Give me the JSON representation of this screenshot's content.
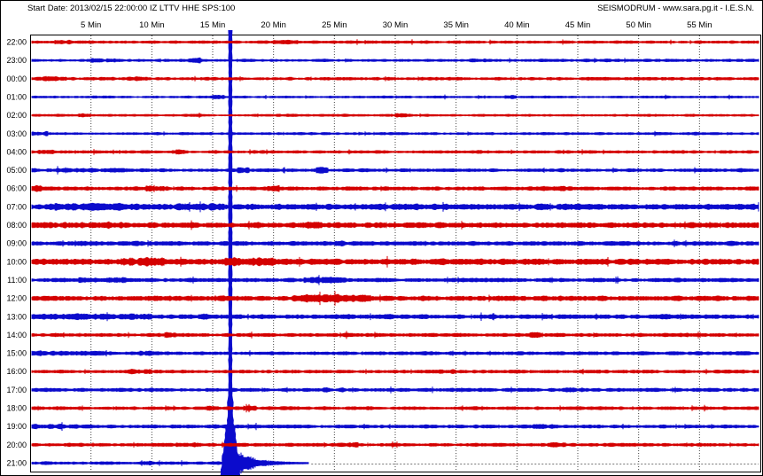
{
  "window": {
    "background": "#ffffff",
    "border_color": "#000000"
  },
  "header": {
    "start_date_label": "Start Date: 2013/02/15 22:00:00 IZ LTTV HHE SPS:100",
    "brand_label": "SEISMODRUM - www.sara.pg.it - I.E.S.N."
  },
  "chart_data": {
    "type": "line",
    "subtype": "helicorder_seismogram_drum",
    "title": "24-hour seismic drum recording, one hour per trace, alternating red/blue",
    "x_axis": {
      "unit": "minutes",
      "min": 0,
      "max": 60,
      "tick_interval": 5,
      "tick_labels": [
        "5 Min",
        "10 Min",
        "15 Min",
        "20 Min",
        "25 Min",
        "30 Min",
        "35 Min",
        "40 Min",
        "45 Min",
        "50 Min",
        "55 Min"
      ]
    },
    "grid": {
      "vertical_dotted_every_min": 5,
      "horizontal": false
    },
    "colors": {
      "red": "#d40000",
      "blue": "#0b0bcc",
      "grid": "#444444",
      "axis": "#000000",
      "pending": "#777777",
      "text": "#000000"
    },
    "rows": [
      {
        "time": "22:00",
        "color": "red",
        "amp": 1.4,
        "bursts": [
          [
            2,
            3.5,
            1.6
          ],
          [
            20,
            22,
            1.4
          ],
          [
            27,
            29,
            1.3
          ]
        ]
      },
      {
        "time": "23:00",
        "color": "blue",
        "amp": 1.4,
        "bursts": [
          [
            5,
            7,
            1.5
          ],
          [
            13,
            14,
            1.6
          ],
          [
            36,
            38,
            1.3
          ]
        ]
      },
      {
        "time": "00:00",
        "color": "red",
        "amp": 1.5,
        "bursts": [
          [
            1,
            3,
            1.5
          ],
          [
            8,
            10,
            1.3
          ]
        ]
      },
      {
        "time": "01:00",
        "color": "blue",
        "amp": 1.2,
        "bursts": [
          [
            15,
            16,
            1.5
          ],
          [
            39,
            40,
            1.9
          ]
        ]
      },
      {
        "time": "02:00",
        "color": "red",
        "amp": 1.2,
        "bursts": [
          [
            4,
            5,
            1.5
          ],
          [
            21,
            22,
            1.5
          ],
          [
            30,
            31,
            1.4
          ]
        ]
      },
      {
        "time": "03:00",
        "color": "blue",
        "amp": 1.3,
        "bursts": [
          [
            0,
            1.5,
            1.8
          ],
          [
            54,
            55,
            1.5
          ]
        ]
      },
      {
        "time": "04:00",
        "color": "red",
        "amp": 1.5,
        "bursts": [
          [
            0,
            2,
            1.3
          ],
          [
            12,
            13,
            1.4
          ]
        ]
      },
      {
        "time": "05:00",
        "color": "blue",
        "amp": 1.6,
        "bursts": [
          [
            0,
            8,
            1.3
          ],
          [
            17,
            18,
            1.5
          ],
          [
            23.5,
            24.5,
            1.6
          ]
        ]
      },
      {
        "time": "06:00",
        "color": "red",
        "amp": 1.8,
        "bursts": [
          [
            0,
            1,
            1.6
          ],
          [
            9.5,
            11,
            1.5
          ],
          [
            19.5,
            20.5,
            1.5
          ],
          [
            42,
            44,
            1.3
          ]
        ]
      },
      {
        "time": "07:00",
        "color": "blue",
        "amp": 2.7,
        "bursts": [
          [
            2,
            9,
            1.25
          ],
          [
            12,
            16,
            1.3
          ]
        ]
      },
      {
        "time": "08:00",
        "color": "red",
        "amp": 2.5,
        "bursts": [
          [
            0,
            8,
            1.2
          ],
          [
            22,
            24,
            1.2
          ]
        ]
      },
      {
        "time": "09:00",
        "color": "blue",
        "amp": 2.0,
        "bursts": [
          [
            3,
            6,
            1.2
          ],
          [
            25,
            27,
            1.2
          ]
        ]
      },
      {
        "time": "10:00",
        "color": "red",
        "amp": 2.7,
        "bursts": [
          [
            7.5,
            11,
            1.5
          ],
          [
            16,
            20,
            1.4
          ]
        ]
      },
      {
        "time": "11:00",
        "color": "blue",
        "amp": 1.9,
        "bursts": [
          [
            4,
            8,
            1.4
          ],
          [
            22.5,
            26,
            1.5
          ]
        ]
      },
      {
        "time": "12:00",
        "color": "red",
        "amp": 2.3,
        "bursts": [
          [
            21.5,
            28,
            1.5
          ]
        ]
      },
      {
        "time": "13:00",
        "color": "blue",
        "amp": 2.1,
        "bursts": [
          [
            0,
            10,
            1.3
          ],
          [
            13,
            15,
            1.3
          ]
        ]
      },
      {
        "time": "14:00",
        "color": "red",
        "amp": 1.7,
        "bursts": [
          [
            11,
            12,
            1.6
          ],
          [
            41,
            42,
            1.4
          ]
        ]
      },
      {
        "time": "15:00",
        "color": "blue",
        "amp": 1.7,
        "bursts": [
          [
            0,
            6,
            1.4
          ],
          [
            9,
            10,
            1.5
          ]
        ]
      },
      {
        "time": "16:00",
        "color": "red",
        "amp": 1.6,
        "bursts": [
          [
            8,
            10,
            1.5
          ],
          [
            33,
            35,
            1.3
          ]
        ]
      },
      {
        "time": "17:00",
        "color": "blue",
        "amp": 1.7,
        "bursts": [
          [
            24,
            26,
            1.3
          ],
          [
            44,
            46,
            1.3
          ]
        ]
      },
      {
        "time": "18:00",
        "color": "red",
        "amp": 1.6,
        "bursts": [
          [
            14.5,
            15.5,
            1.5
          ],
          [
            17.5,
            18.5,
            1.8
          ]
        ]
      },
      {
        "time": "19:00",
        "color": "blue",
        "amp": 1.7,
        "bursts": [
          [
            0,
            4,
            1.3
          ],
          [
            41,
            43,
            1.4
          ]
        ]
      },
      {
        "time": "20:00",
        "color": "red",
        "amp": 1.6,
        "bursts": [
          [
            12,
            14,
            1.4
          ],
          [
            26,
            27,
            1.5
          ],
          [
            42,
            44,
            1.4
          ]
        ]
      },
      {
        "time": "21:00",
        "color": "blue",
        "amp": 1.5,
        "bursts": [
          [
            9,
            10,
            1.4
          ]
        ]
      }
    ],
    "event": {
      "row": "21:00",
      "center_minute": 16.45,
      "start_minute": 16.28,
      "clipped": true,
      "band_spans_all_rows": true,
      "coda_end_minute": 22.9
    },
    "pending_segment": {
      "row": "21:00",
      "from_minute": 23.1,
      "to_minute": 60,
      "style": "dashed"
    }
  }
}
